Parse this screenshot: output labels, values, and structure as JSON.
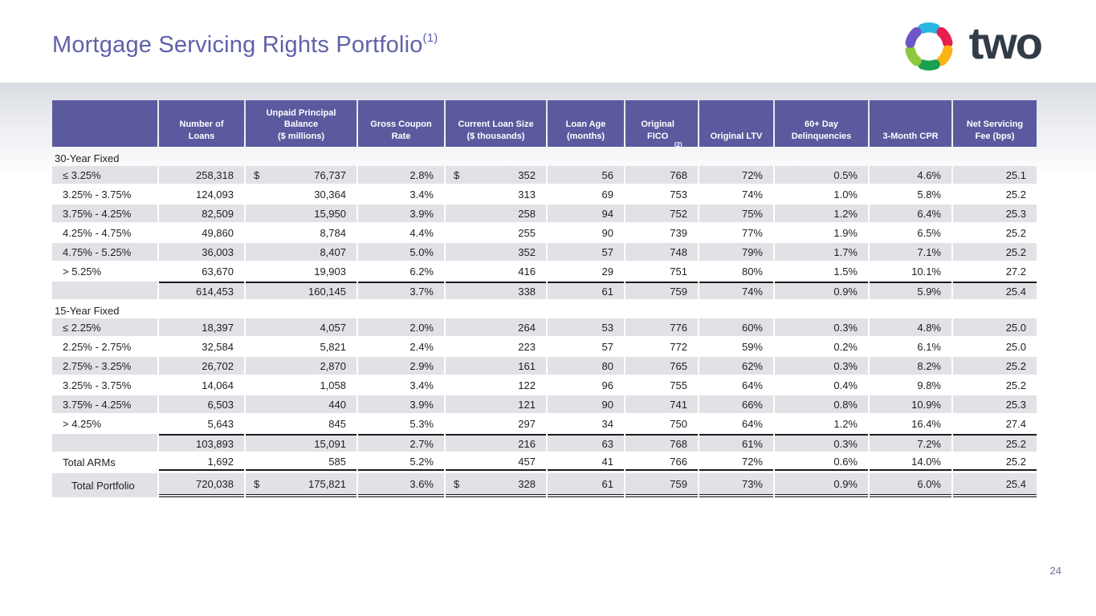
{
  "slide": {
    "title": "Mortgage Servicing Rights Portfolio",
    "title_sup": "(1)",
    "page_number": "24"
  },
  "logo": {
    "wordmark": "two",
    "star_colors": [
      "#2ab6e3",
      "#e71f4d",
      "#fcb316",
      "#1aa04f",
      "#8dc63f",
      "#6f55c8"
    ]
  },
  "colors": {
    "header_bg": "#5b5a9e",
    "title": "#5f61a9",
    "row_shade": "#e1e1e6",
    "text": "#1f1f1f",
    "wordmark": "#323c46"
  },
  "table": {
    "columns": [
      {
        "label": ""
      },
      {
        "label": "Number of\nLoans"
      },
      {
        "label": "Unpaid Principal\nBalance\n($ millions)"
      },
      {
        "label": "Gross Coupon\nRate"
      },
      {
        "label": "Current Loan Size\n($ thousands)"
      },
      {
        "label": "Loan Age\n(months)"
      },
      {
        "label": "Original\nFICO",
        "sup": "(2)"
      },
      {
        "label": "Original LTV"
      },
      {
        "label": "60+ Day\nDelinquencies"
      },
      {
        "label": "3-Month CPR"
      },
      {
        "label": "Net Servicing\nFee (bps)"
      }
    ],
    "rows": [
      {
        "type": "section",
        "label": "30-Year Fixed"
      },
      {
        "type": "data",
        "shade": true,
        "label": "≤ 3.25%",
        "dollars": [
          1,
          3
        ],
        "values": [
          "258,318",
          "76,737",
          "2.8%",
          "352",
          "56",
          "768",
          "72%",
          "0.5%",
          "4.6%",
          "25.1"
        ]
      },
      {
        "type": "data",
        "shade": false,
        "label": "3.25% - 3.75%",
        "values": [
          "124,093",
          "30,364",
          "3.4%",
          "313",
          "69",
          "753",
          "74%",
          "1.0%",
          "5.8%",
          "25.2"
        ]
      },
      {
        "type": "data",
        "shade": true,
        "label": "3.75% - 4.25%",
        "values": [
          "82,509",
          "15,950",
          "3.9%",
          "258",
          "94",
          "752",
          "75%",
          "1.2%",
          "6.4%",
          "25.3"
        ]
      },
      {
        "type": "data",
        "shade": false,
        "label": "4.25% - 4.75%",
        "values": [
          "49,860",
          "8,784",
          "4.4%",
          "255",
          "90",
          "739",
          "77%",
          "1.9%",
          "6.5%",
          "25.2"
        ]
      },
      {
        "type": "data",
        "shade": true,
        "label": "4.75% - 5.25%",
        "values": [
          "36,003",
          "8,407",
          "5.0%",
          "352",
          "57",
          "748",
          "79%",
          "1.7%",
          "7.1%",
          "25.2"
        ]
      },
      {
        "type": "data",
        "shade": false,
        "label": "> 5.25%",
        "values": [
          "63,670",
          "19,903",
          "6.2%",
          "416",
          "29",
          "751",
          "80%",
          "1.5%",
          "10.1%",
          "27.2"
        ]
      },
      {
        "type": "data",
        "shade": true,
        "label": "",
        "border_top": true,
        "values": [
          "614,453",
          "160,145",
          "3.7%",
          "338",
          "61",
          "759",
          "74%",
          "0.9%",
          "5.9%",
          "25.4"
        ]
      },
      {
        "type": "section",
        "label": "15-Year Fixed"
      },
      {
        "type": "data",
        "shade": true,
        "label": "≤ 2.25%",
        "values": [
          "18,397",
          "4,057",
          "2.0%",
          "264",
          "53",
          "776",
          "60%",
          "0.3%",
          "4.8%",
          "25.0"
        ]
      },
      {
        "type": "data",
        "shade": false,
        "label": "2.25% - 2.75%",
        "values": [
          "32,584",
          "5,821",
          "2.4%",
          "223",
          "57",
          "772",
          "59%",
          "0.2%",
          "6.1%",
          "25.0"
        ]
      },
      {
        "type": "data",
        "shade": true,
        "label": "2.75% - 3.25%",
        "values": [
          "26,702",
          "2,870",
          "2.9%",
          "161",
          "80",
          "765",
          "62%",
          "0.3%",
          "8.2%",
          "25.2"
        ]
      },
      {
        "type": "data",
        "shade": false,
        "label": "3.25% - 3.75%",
        "values": [
          "14,064",
          "1,058",
          "3.4%",
          "122",
          "96",
          "755",
          "64%",
          "0.4%",
          "9.8%",
          "25.2"
        ]
      },
      {
        "type": "data",
        "shade": true,
        "label": "3.75% - 4.25%",
        "values": [
          "6,503",
          "440",
          "3.9%",
          "121",
          "90",
          "741",
          "66%",
          "0.8%",
          "10.9%",
          "25.3"
        ]
      },
      {
        "type": "data",
        "shade": false,
        "label": "> 4.25%",
        "values": [
          "5,643",
          "845",
          "5.3%",
          "297",
          "34",
          "750",
          "64%",
          "1.2%",
          "16.4%",
          "27.4"
        ]
      },
      {
        "type": "data",
        "shade": true,
        "label": "",
        "border_top": true,
        "values": [
          "103,893",
          "15,091",
          "2.7%",
          "216",
          "63",
          "768",
          "61%",
          "0.3%",
          "7.2%",
          "25.2"
        ]
      },
      {
        "type": "data",
        "shade": false,
        "label": "Total ARMs",
        "border_bottom": true,
        "values": [
          "1,692",
          "585",
          "5.2%",
          "457",
          "41",
          "766",
          "72%",
          "0.6%",
          "14.0%",
          "25.2"
        ]
      },
      {
        "type": "total",
        "shade": true,
        "label": "Total Portfolio",
        "indent": true,
        "double_bottom": true,
        "dollars": [
          1,
          3
        ],
        "values": [
          "720,038",
          "175,821",
          "3.6%",
          "328",
          "61",
          "759",
          "73%",
          "0.9%",
          "6.0%",
          "25.4"
        ]
      }
    ]
  }
}
